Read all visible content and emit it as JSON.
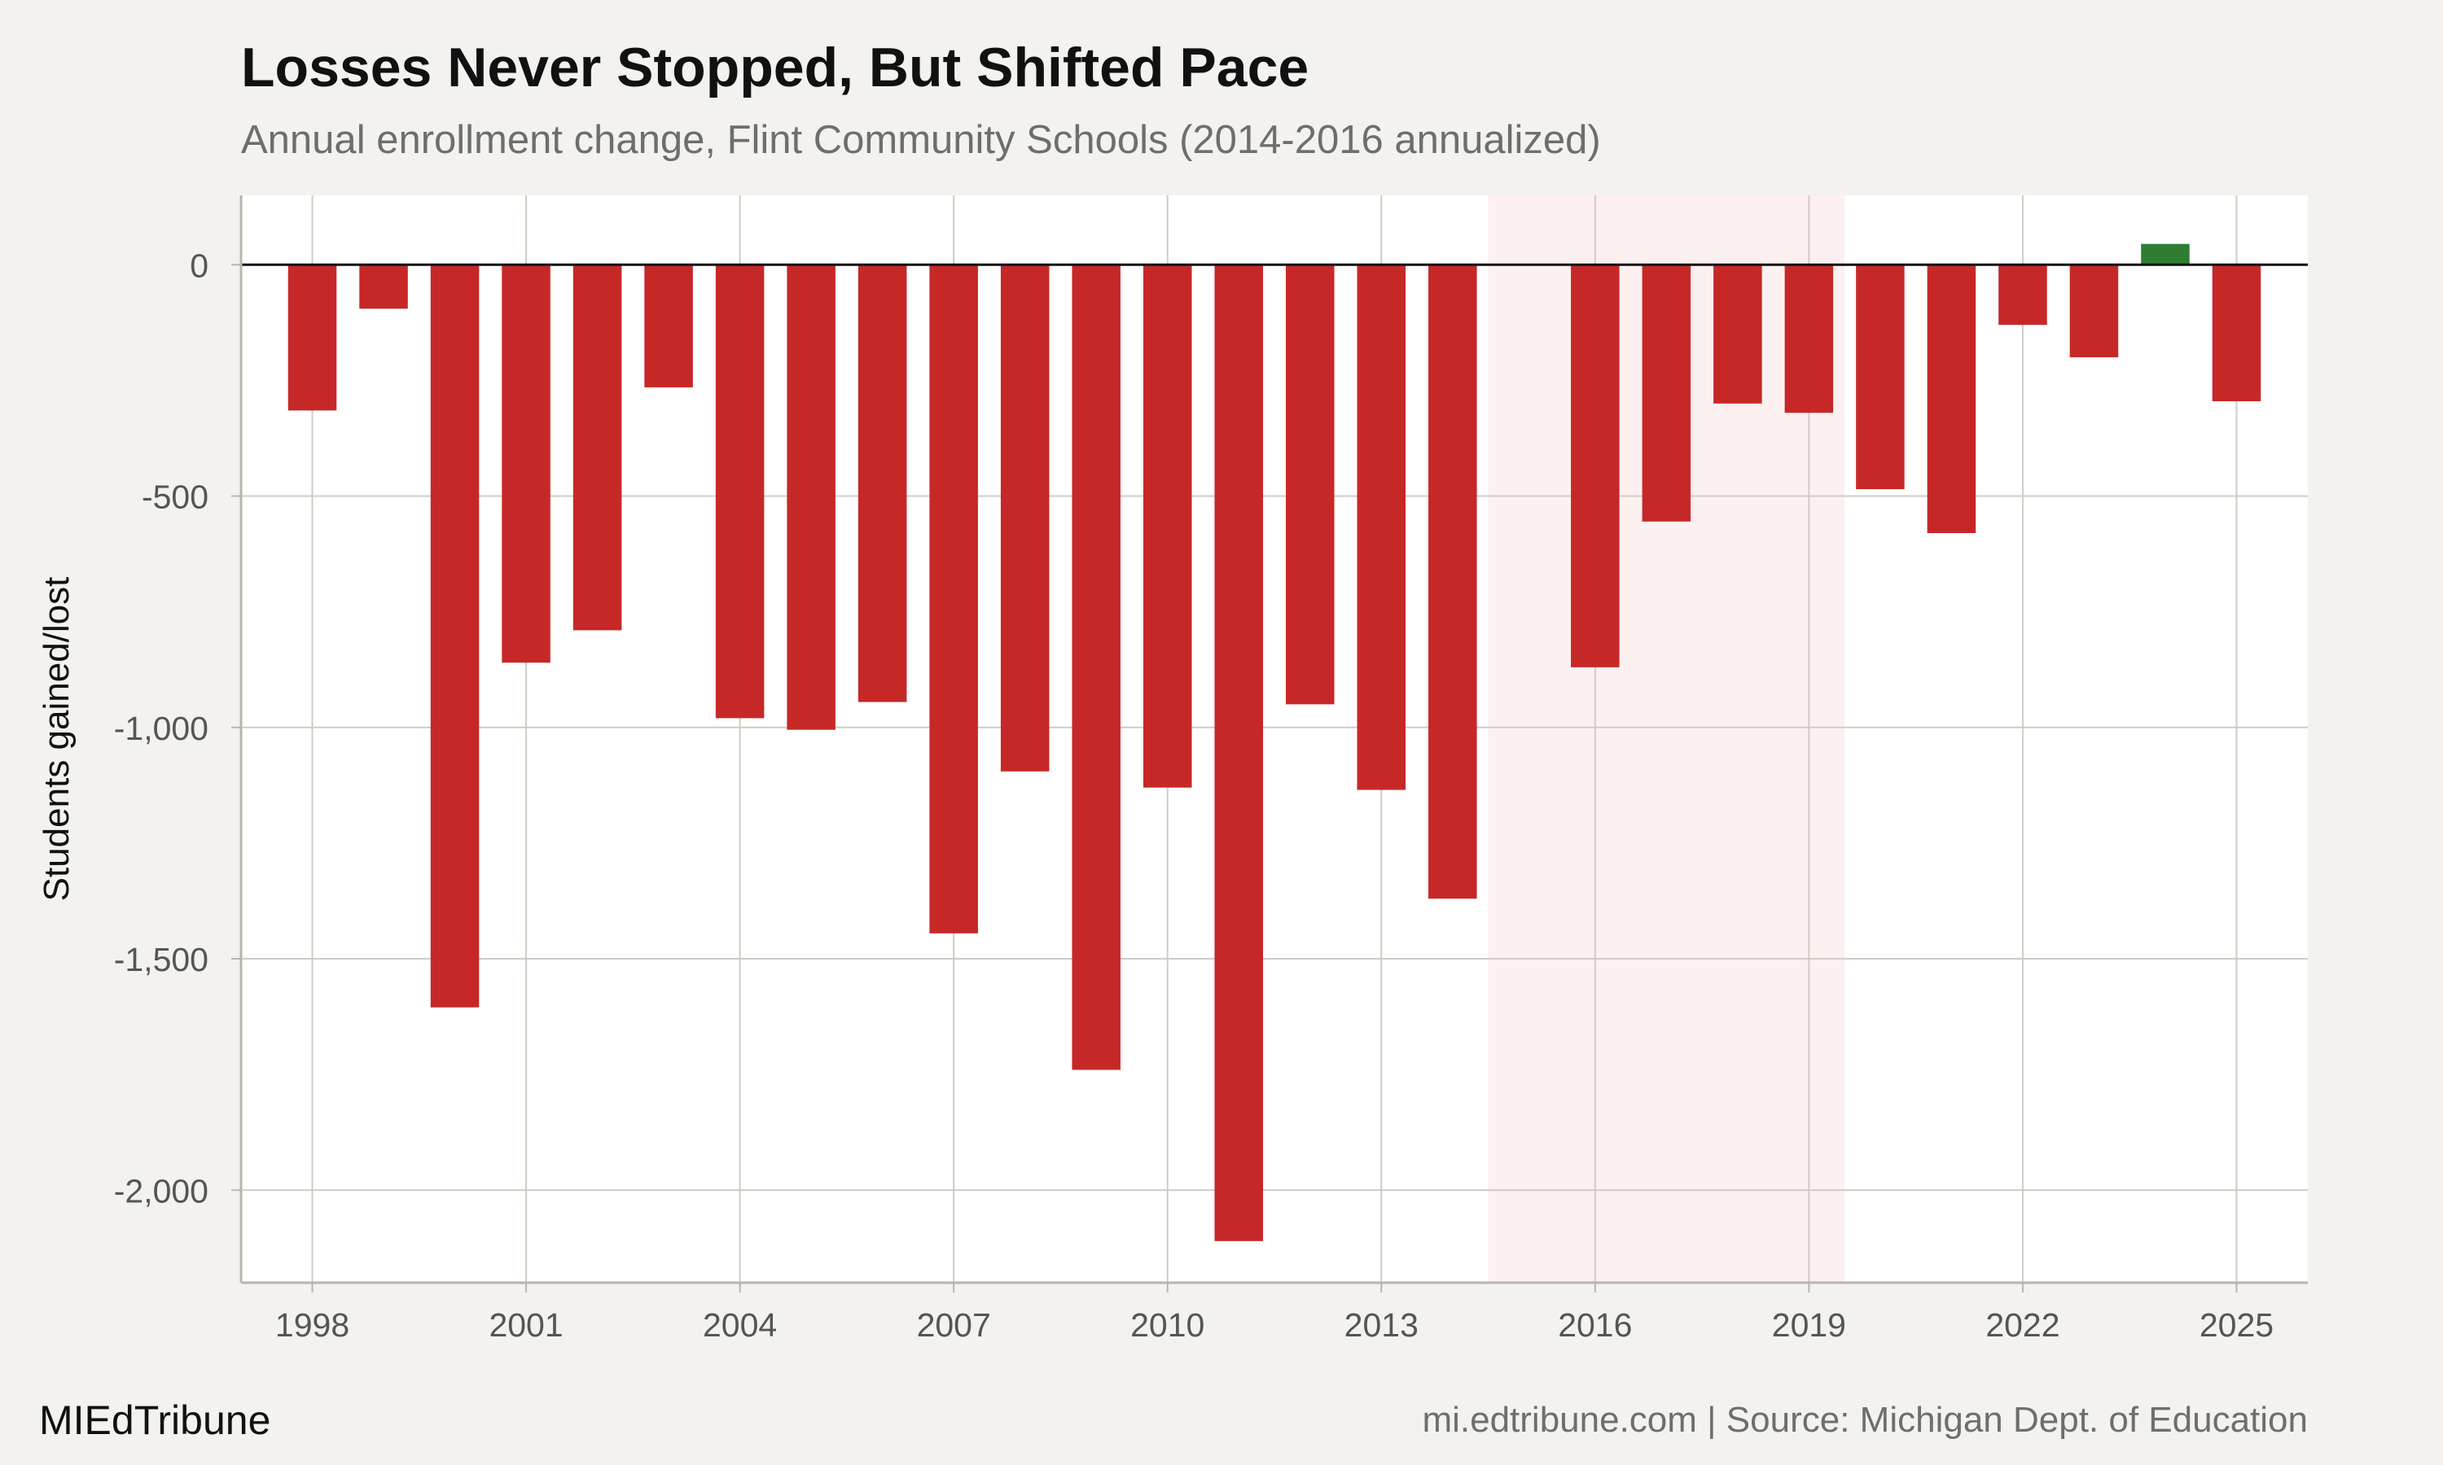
{
  "header": {
    "title": "Losses Never Stopped, But Shifted Pace",
    "subtitle": "Annual enrollment change, Flint Community Schools (2014-2016 annualized)"
  },
  "footer": {
    "brand": "MIEdTribune",
    "source": "mi.edtribune.com | Source: Michigan Dept. of Education"
  },
  "colors": {
    "loss": "#c62828",
    "gain": "#2e7d32",
    "highlight": "#fdf0f0",
    "background": "#f4f2ee",
    "panel": "#ffffff",
    "grid": "#cfccc4"
  },
  "chart_data": {
    "type": "bar",
    "ylabel": "Students gained/lost",
    "xlabel": "",
    "ylim": [
      -2200,
      150
    ],
    "xlim": [
      1997,
      2026
    ],
    "yticks": [
      0,
      -500,
      -1000,
      -1500,
      -2000
    ],
    "ytick_labels": [
      "0",
      "-500",
      "-1,000",
      "-1,500",
      "-2,000"
    ],
    "xticks": [
      1998,
      2001,
      2004,
      2007,
      2010,
      2013,
      2016,
      2019,
      2022,
      2025
    ],
    "xtick_labels": [
      "1998",
      "2001",
      "2004",
      "2007",
      "2010",
      "2013",
      "2016",
      "2019",
      "2022",
      "2025"
    ],
    "highlight_range": [
      2014.5,
      2019.5
    ],
    "grid": true,
    "zero_line": true,
    "x": [
      1998,
      1999,
      2000,
      2001,
      2002,
      2003,
      2004,
      2005,
      2006,
      2007,
      2008,
      2009,
      2010,
      2011,
      2012,
      2013,
      2014,
      2016,
      2017,
      2018,
      2019,
      2020,
      2021,
      2022,
      2023,
      2024,
      2025
    ],
    "values": [
      -315,
      -95,
      -1605,
      -860,
      -790,
      -265,
      -980,
      -1005,
      -945,
      -1445,
      -1095,
      -1740,
      -1130,
      -2110,
      -950,
      -1135,
      -1370,
      -870,
      -555,
      -300,
      -320,
      -485,
      -580,
      -130,
      -200,
      45,
      -295
    ]
  }
}
